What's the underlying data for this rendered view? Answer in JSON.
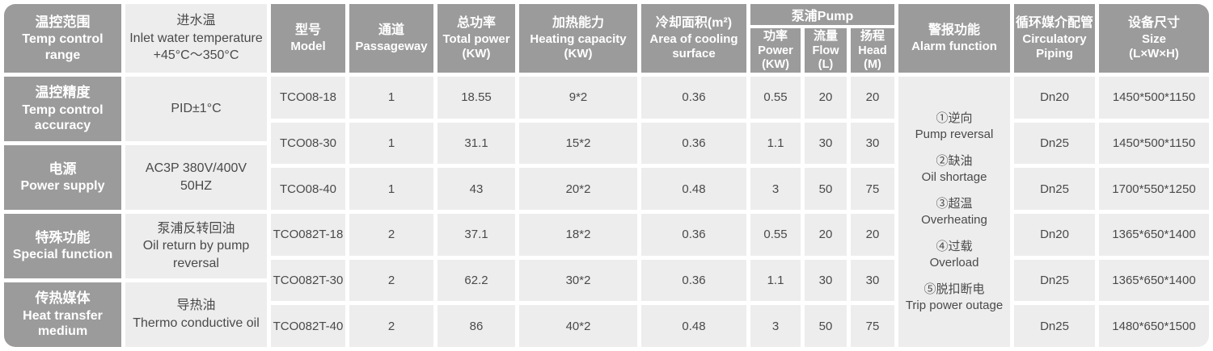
{
  "colors": {
    "header_bg": "#9b9b9b",
    "cell_bg": "#ededed",
    "cell_text": "#4a4a4a",
    "header_text": "#ffffff",
    "gap": "#ffffff"
  },
  "left_panel": {
    "rows": [
      {
        "label_cn": "温控范围",
        "label_en": "Temp control range",
        "v1": "进水温",
        "v2": "Inlet water temperature",
        "v3": "+45°C～350°C"
      },
      {
        "label_cn": "温控精度",
        "label_en": "Temp control accuracy",
        "v1": "PID±1°C",
        "v2": "",
        "v3": ""
      },
      {
        "label_cn": "电源",
        "label_en": "Power supply",
        "v1": "AC3P 380V/400V 50HZ",
        "v2": "",
        "v3": ""
      },
      {
        "label_cn": "特殊功能",
        "label_en": "Special function",
        "v1": "泵浦反转回油",
        "v2": "Oil return by pump reversal",
        "v3": ""
      },
      {
        "label_cn": "传热媒体",
        "label_en": "Heat transfer medium",
        "v1": "导热油",
        "v2": "Thermo conductive oil",
        "v3": ""
      }
    ]
  },
  "spec_table": {
    "headers": {
      "model": {
        "cn": "型号",
        "en": "Model"
      },
      "passageway": {
        "cn": "通道",
        "en": "Passageway"
      },
      "total_power": {
        "cn": "总功率",
        "en": "Total power",
        "unit": "(KW)"
      },
      "heating": {
        "cn": "加热能力",
        "en": "Heating capacity",
        "unit": "(KW)"
      },
      "cooling": {
        "cn": "冷却面积(m²)",
        "en": "Area of cooling surface"
      },
      "pump_group": "泵浦Pump",
      "pump_power": {
        "cn": "功率",
        "en": "Power",
        "unit": "(KW)"
      },
      "pump_flow": {
        "cn": "流量",
        "en": "Flow",
        "unit": "(L)"
      },
      "pump_head": {
        "cn": "扬程",
        "en": "Head",
        "unit": "(M)"
      },
      "alarm": {
        "cn": "警报功能",
        "en": "Alarm function"
      },
      "piping": {
        "cn": "循环媒介配管",
        "en": "Circulatory Piping"
      },
      "size": {
        "cn": "设备尺寸",
        "en": "Size",
        "unit": "(L×W×H)"
      }
    },
    "rows": [
      {
        "model": "TCO08-18",
        "passageway": "1",
        "total_power": "18.55",
        "heating": "9*2",
        "cooling": "0.36",
        "pump_power": "0.55",
        "pump_flow": "20",
        "pump_head": "20",
        "piping": "Dn20",
        "size": "1450*500*1150"
      },
      {
        "model": "TCO08-30",
        "passageway": "1",
        "total_power": "31.1",
        "heating": "15*2",
        "cooling": "0.36",
        "pump_power": "1.1",
        "pump_flow": "30",
        "pump_head": "30",
        "piping": "Dn25",
        "size": "1450*500*1150"
      },
      {
        "model": "TCO08-40",
        "passageway": "1",
        "total_power": "43",
        "heating": "20*2",
        "cooling": "0.48",
        "pump_power": "3",
        "pump_flow": "50",
        "pump_head": "75",
        "piping": "Dn25",
        "size": "1700*550*1250"
      },
      {
        "model": "TCO082T-18",
        "passageway": "2",
        "total_power": "37.1",
        "heating": "18*2",
        "cooling": "0.36",
        "pump_power": "0.55",
        "pump_flow": "20",
        "pump_head": "20",
        "piping": "Dn20",
        "size": "1365*650*1400"
      },
      {
        "model": "TCO082T-30",
        "passageway": "2",
        "total_power": "62.2",
        "heating": "30*2",
        "cooling": "0.36",
        "pump_power": "1.1",
        "pump_flow": "30",
        "pump_head": "30",
        "piping": "Dn25",
        "size": "1365*650*1400"
      },
      {
        "model": "TCO082T-40",
        "passageway": "2",
        "total_power": "86",
        "heating": "40*2",
        "cooling": "0.48",
        "pump_power": "3",
        "pump_flow": "50",
        "pump_head": "75",
        "piping": "Dn25",
        "size": "1480*650*1500"
      }
    ],
    "alarm_items": [
      {
        "cn": "①逆向",
        "en": "Pump reversal"
      },
      {
        "cn": "②缺油",
        "en": "Oil shortage"
      },
      {
        "cn": "③超温",
        "en": "Overheating"
      },
      {
        "cn": "④过载",
        "en": "Overload"
      },
      {
        "cn": "⑤脱扣断电",
        "en": "Trip power outage"
      }
    ]
  }
}
